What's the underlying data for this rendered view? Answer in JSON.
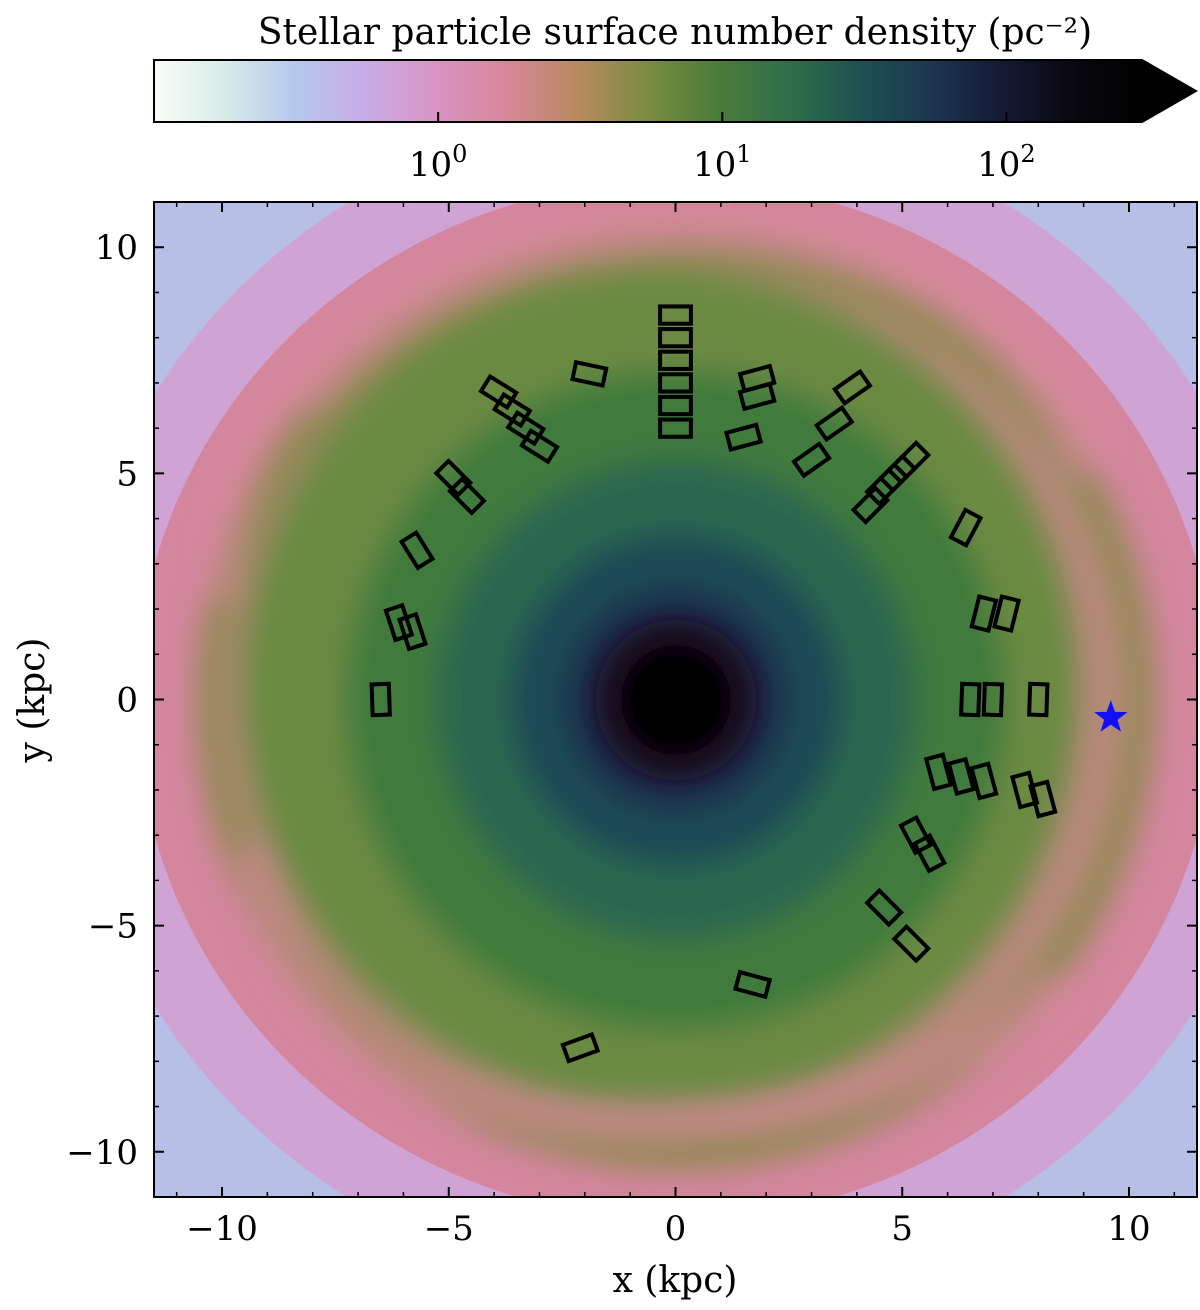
{
  "colors": {
    "star": "#1010ff",
    "frame": "#000000",
    "colormap": [
      "#fafdf6",
      "#d6ece8",
      "#b6c8ec",
      "#c8abe6",
      "#d994c4",
      "#d88698",
      "#b88a60",
      "#7a8c40",
      "#4b7b38",
      "#2e6e4a",
      "#1d5250",
      "#1c3650",
      "#141a36",
      "#0a0810",
      "#000000"
    ]
  },
  "colorbar": {
    "label": "Stellar particle surface number density (pc⁻²)",
    "scale": "log",
    "extend": "max",
    "ticks": [
      {
        "value": 1,
        "base": "10",
        "exp": "0"
      },
      {
        "value": 10,
        "base": "10",
        "exp": "1"
      },
      {
        "value": 100,
        "base": "10",
        "exp": "2"
      }
    ]
  },
  "chart_data": {
    "type": "heatmap",
    "title": "",
    "xlabel": "x (kpc)",
    "ylabel": "y (kpc)",
    "xlim": [
      -11.5,
      11.5
    ],
    "ylim": [
      -11,
      11
    ],
    "xticks": [
      {
        "value": -10,
        "label": "−10"
      },
      {
        "value": -5,
        "label": "−5"
      },
      {
        "value": 0,
        "label": "0"
      },
      {
        "value": 5,
        "label": "5"
      },
      {
        "value": 10,
        "label": "10"
      }
    ],
    "yticks": [
      {
        "value": -10,
        "label": "−10"
      },
      {
        "value": -5,
        "label": "−5"
      },
      {
        "value": 0,
        "label": "0"
      },
      {
        "value": 5,
        "label": "5"
      },
      {
        "value": 10,
        "label": "10"
      }
    ],
    "grid": false,
    "density_description": "log surface number density map of a spiral stellar disc, peak at origin",
    "star_marker": {
      "x": 9.6,
      "y": -0.4
    },
    "fields": [
      {
        "x": 0.0,
        "y": 8.5,
        "angle": 0
      },
      {
        "x": 0.0,
        "y": 8.0,
        "angle": 0
      },
      {
        "x": 0.0,
        "y": 7.5,
        "angle": 0
      },
      {
        "x": 0.0,
        "y": 7.0,
        "angle": 0
      },
      {
        "x": 0.0,
        "y": 6.5,
        "angle": 0
      },
      {
        "x": 0.0,
        "y": 6.0,
        "angle": 0
      },
      {
        "x": -1.9,
        "y": 7.2,
        "angle": 12
      },
      {
        "x": -3.9,
        "y": 6.8,
        "angle": 32
      },
      {
        "x": -3.6,
        "y": 6.4,
        "angle": 32
      },
      {
        "x": -3.3,
        "y": 6.0,
        "angle": 32
      },
      {
        "x": -3.0,
        "y": 5.6,
        "angle": 32
      },
      {
        "x": -4.9,
        "y": 4.9,
        "angle": 45
      },
      {
        "x": -4.6,
        "y": 4.5,
        "angle": 45
      },
      {
        "x": -5.7,
        "y": 3.3,
        "angle": 58
      },
      {
        "x": -6.1,
        "y": 1.7,
        "angle": 72
      },
      {
        "x": -5.8,
        "y": 1.5,
        "angle": 72
      },
      {
        "x": -6.5,
        "y": 0.0,
        "angle": 88
      },
      {
        "x": 1.8,
        "y": 7.1,
        "angle": -15
      },
      {
        "x": 1.8,
        "y": 6.7,
        "angle": -15
      },
      {
        "x": 1.5,
        "y": 5.8,
        "angle": -15
      },
      {
        "x": 3.9,
        "y": 6.9,
        "angle": -35
      },
      {
        "x": 3.5,
        "y": 6.1,
        "angle": -35
      },
      {
        "x": 3.0,
        "y": 5.3,
        "angle": -35
      },
      {
        "x": 5.2,
        "y": 5.3,
        "angle": -45
      },
      {
        "x": 4.9,
        "y": 5.0,
        "angle": -45
      },
      {
        "x": 4.6,
        "y": 4.7,
        "angle": -45
      },
      {
        "x": 4.3,
        "y": 4.3,
        "angle": -45
      },
      {
        "x": 6.4,
        "y": 3.8,
        "angle": -62
      },
      {
        "x": 6.8,
        "y": 1.9,
        "angle": -76
      },
      {
        "x": 7.3,
        "y": 1.9,
        "angle": -76
      },
      {
        "x": 6.5,
        "y": 0.0,
        "angle": -88
      },
      {
        "x": 7.0,
        "y": 0.0,
        "angle": -88
      },
      {
        "x": 8.0,
        "y": 0.0,
        "angle": -88
      },
      {
        "x": 5.8,
        "y": -1.6,
        "angle": -105
      },
      {
        "x": 6.3,
        "y": -1.7,
        "angle": -105
      },
      {
        "x": 6.8,
        "y": -1.8,
        "angle": -105
      },
      {
        "x": 7.7,
        "y": -2.0,
        "angle": -105
      },
      {
        "x": 8.1,
        "y": -2.2,
        "angle": -105
      },
      {
        "x": 5.3,
        "y": -3.0,
        "angle": -118
      },
      {
        "x": 5.6,
        "y": -3.4,
        "angle": -118
      },
      {
        "x": 4.6,
        "y": -4.6,
        "angle": -135
      },
      {
        "x": 5.2,
        "y": -5.4,
        "angle": -135
      },
      {
        "x": 1.7,
        "y": -6.3,
        "angle": -165
      },
      {
        "x": -2.1,
        "y": -7.7,
        "angle": -200
      }
    ]
  }
}
